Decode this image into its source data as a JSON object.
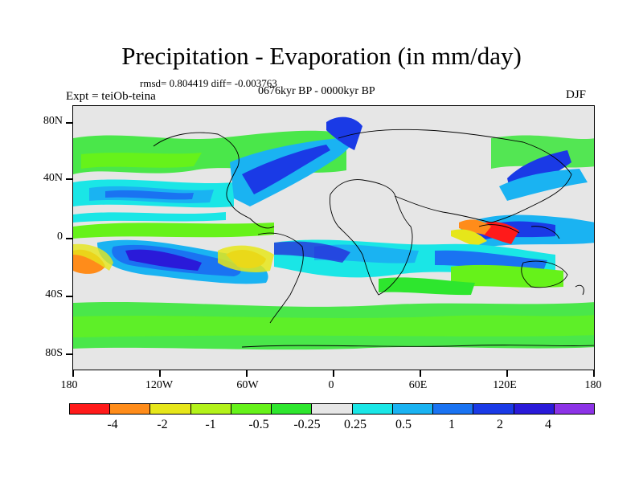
{
  "title": "Precipitation - Evaporation (in mm/day)",
  "stats": "rmsd= 0.804419 diff= -0.003763",
  "period": "0676kyr BP - 0000kyr BP",
  "experiment": "Expt = teiOb-teina",
  "season": "DJF",
  "map": {
    "projection": "cylindrical equidistant",
    "lon_range": [
      -180,
      180
    ],
    "lat_range": [
      -90,
      90
    ],
    "y_ticks": [
      {
        "label": "80N"
      },
      {
        "label": "40N"
      },
      {
        "label": "0"
      },
      {
        "label": "40S"
      },
      {
        "label": "80S"
      }
    ],
    "x_ticks": [
      {
        "label": "180"
      },
      {
        "label": "120W"
      },
      {
        "label": "60W"
      },
      {
        "label": "0"
      },
      {
        "label": "60E"
      },
      {
        "label": "120E"
      },
      {
        "label": "180"
      }
    ],
    "background_color": "#e6e6e6",
    "coastline_color": "#000000"
  },
  "colorbar": {
    "colors": [
      "#ff1a1a",
      "#ff8c1a",
      "#e6e61a",
      "#b3f21a",
      "#66f21a",
      "#2ee62e",
      "#e6e6e6",
      "#1ae6e6",
      "#1ab3f2",
      "#1a73f2",
      "#1a3ae6",
      "#2a1ad9",
      "#8c33e6"
    ],
    "labels": [
      "-4",
      "-2",
      "-1",
      "-0.5",
      "-0.25",
      "0.25",
      "0.5",
      "1",
      "2",
      "4"
    ]
  }
}
